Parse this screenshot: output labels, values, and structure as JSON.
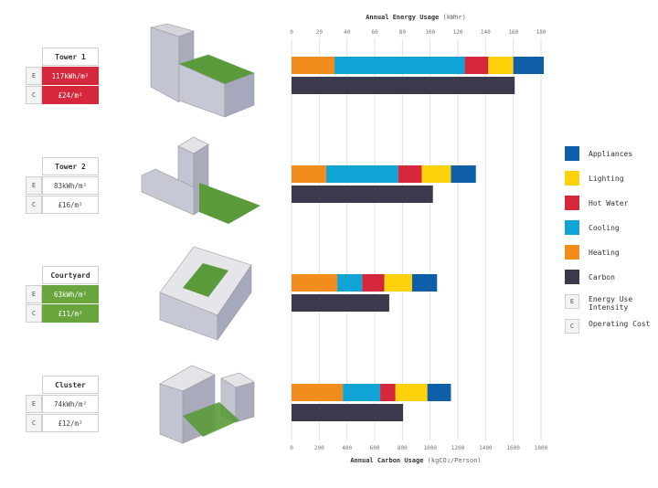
{
  "chart_data": {
    "type": "bar",
    "orientation": "horizontal",
    "stacked": true,
    "top_axis": {
      "title": "Annual Energy Usage",
      "unit": "(kWhr)",
      "ticks": [
        "0",
        "20",
        "40",
        "60",
        "80",
        "100",
        "120",
        "140",
        "160",
        "180"
      ],
      "range": [
        0,
        180
      ]
    },
    "bottom_axis": {
      "title": "Annual Carbon Usage",
      "unit": "(kgCO₂/Person)",
      "ticks": [
        "0",
        "200",
        "400",
        "600",
        "800",
        "1000",
        "1200",
        "1400",
        "1600",
        "1800"
      ],
      "range": [
        0,
        1800
      ]
    },
    "categories": [
      "Tower 1",
      "Tower 2",
      "Courtyard",
      "Cluster"
    ],
    "energy_series": [
      {
        "name": "Heating",
        "color": "#f28c1c",
        "values": [
          31,
          25,
          33,
          37
        ]
      },
      {
        "name": "Cooling",
        "color": "#10a3d6",
        "values": [
          94,
          52,
          18,
          27
        ]
      },
      {
        "name": "Hot Water",
        "color": "#d6283c",
        "values": [
          17,
          17,
          16,
          11
        ]
      },
      {
        "name": "Lighting",
        "color": "#fdd20a",
        "values": [
          18,
          21,
          20,
          23
        ]
      },
      {
        "name": "Appliances",
        "color": "#0f5fa8",
        "values": [
          22,
          18,
          18,
          17
        ]
      }
    ],
    "carbon_series": {
      "name": "Carbon",
      "color": "#3b3a4c",
      "values": [
        1610,
        1020,
        705,
        805
      ]
    }
  },
  "buildings": [
    {
      "name": "Tower 1",
      "eui": "117kWh/m²",
      "cost": "£24/m²",
      "highlight": "red"
    },
    {
      "name": "Tower 2",
      "eui": "83kWh/m²",
      "cost": "£16/m²",
      "highlight": "none"
    },
    {
      "name": "Courtyard",
      "eui": "63kWh/m²",
      "cost": "£11/m²",
      "highlight": "green"
    },
    {
      "name": "Cluster",
      "eui": "74kWh/m²",
      "cost": "£12/m²",
      "highlight": "none"
    }
  ],
  "card_keys": {
    "energy": "E",
    "cost": "C"
  },
  "legend": [
    {
      "label": "Appliances",
      "color": "#0f5fa8"
    },
    {
      "label": "Lighting",
      "color": "#fdd20a"
    },
    {
      "label": "Hot Water",
      "color": "#d6283c"
    },
    {
      "label": "Cooling",
      "color": "#10a3d6"
    },
    {
      "label": "Heating",
      "color": "#f28c1c"
    },
    {
      "label": "Carbon",
      "color": "#3b3a4c"
    },
    {
      "label": "Energy Use Intensity",
      "key": "E"
    },
    {
      "label": "Operating Cost",
      "key": "C"
    }
  ]
}
